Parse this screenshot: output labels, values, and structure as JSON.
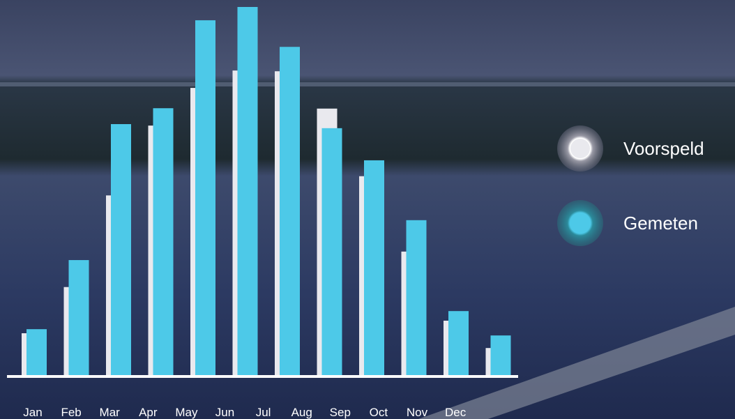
{
  "chart_data": {
    "type": "bar",
    "categories": [
      "Jan",
      "Feb",
      "Mar",
      "Apr",
      "May",
      "Jun",
      "Jul",
      "Aug",
      "Sep",
      "Oct",
      "Nov",
      "Dec"
    ],
    "series": [
      {
        "name": "Voorspeld",
        "color": "#e9e9ee",
        "values": [
          11.7,
          24.2,
          49.0,
          67.9,
          78.1,
          82.8,
          82.6,
          72.5,
          54.2,
          33.8,
          15.1,
          7.7
        ]
      },
      {
        "name": "Gemeten",
        "color": "#4dc9e8",
        "values": [
          12.8,
          31.5,
          68.3,
          72.6,
          96.4,
          100,
          89.2,
          67.2,
          58.5,
          42.3,
          17.7,
          11.1
        ]
      }
    ],
    "ylim": [
      0,
      100
    ]
  }
}
